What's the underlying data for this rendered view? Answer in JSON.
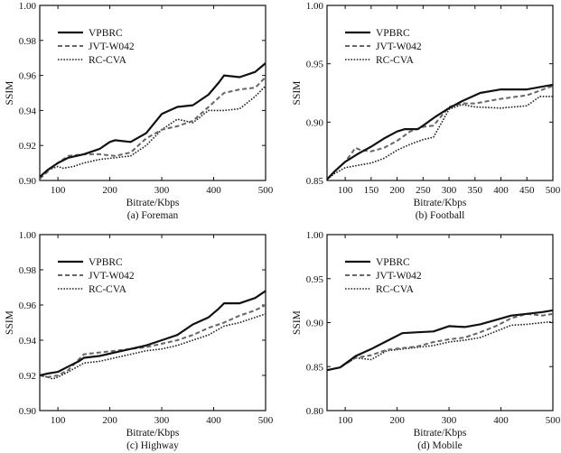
{
  "chart_data": [
    {
      "type": "line",
      "caption": "(a) Foreman",
      "xlabel": "Bitrate/Kbps",
      "ylabel": "SSIM",
      "xlim": [
        65,
        500
      ],
      "ylim": [
        0.9,
        1.0
      ],
      "xticks": [
        100,
        200,
        300,
        400,
        500
      ],
      "yticks": [
        0.9,
        0.92,
        0.94,
        0.96,
        0.98,
        1.0
      ],
      "ytick_labels": [
        "0.90",
        "0.92",
        "0.94",
        "0.96",
        "0.98",
        "1.00"
      ],
      "legend": "top-left",
      "series": [
        {
          "name": "VPBRC",
          "style": "solid",
          "x": [
            65,
            80,
            100,
            120,
            150,
            180,
            200,
            210,
            240,
            270,
            300,
            330,
            360,
            390,
            410,
            420,
            450,
            480,
            500
          ],
          "y": [
            0.902,
            0.906,
            0.91,
            0.913,
            0.915,
            0.918,
            0.922,
            0.923,
            0.922,
            0.927,
            0.938,
            0.942,
            0.943,
            0.949,
            0.956,
            0.96,
            0.959,
            0.962,
            0.967
          ]
        },
        {
          "name": "JVT-W042",
          "style": "dashed",
          "x": [
            65,
            80,
            100,
            120,
            150,
            180,
            210,
            240,
            270,
            300,
            330,
            360,
            390,
            420,
            450,
            480,
            500
          ],
          "y": [
            0.901,
            0.905,
            0.91,
            0.914,
            0.915,
            0.915,
            0.914,
            0.916,
            0.924,
            0.929,
            0.931,
            0.934,
            0.942,
            0.95,
            0.952,
            0.953,
            0.959
          ]
        },
        {
          "name": "RC-CVA",
          "style": "dotted",
          "x": [
            65,
            80,
            100,
            110,
            130,
            150,
            180,
            210,
            240,
            270,
            300,
            330,
            360,
            390,
            420,
            450,
            480,
            500
          ],
          "y": [
            0.902,
            0.906,
            0.908,
            0.907,
            0.908,
            0.91,
            0.912,
            0.913,
            0.914,
            0.92,
            0.929,
            0.935,
            0.933,
            0.94,
            0.94,
            0.941,
            0.948,
            0.954
          ]
        }
      ]
    },
    {
      "type": "line",
      "caption": "(b) Football",
      "xlabel": "Bitrate/Kbps",
      "ylabel": "SSIM",
      "xlim": [
        65,
        500
      ],
      "ylim": [
        0.85,
        1.0
      ],
      "xticks": [
        100,
        150,
        200,
        250,
        300,
        350,
        400,
        450,
        500
      ],
      "yticks": [
        0.85,
        0.9,
        0.95,
        1.0
      ],
      "ytick_labels": [
        "0.85",
        "0.90",
        "0.95",
        "1.00"
      ],
      "legend": "top-left",
      "series": [
        {
          "name": "VPBRC",
          "style": "solid",
          "x": [
            65,
            80,
            100,
            125,
            150,
            175,
            200,
            215,
            240,
            250,
            275,
            300,
            325,
            360,
            400,
            450,
            500
          ],
          "y": [
            0.851,
            0.858,
            0.866,
            0.873,
            0.879,
            0.886,
            0.892,
            0.894,
            0.894,
            0.897,
            0.905,
            0.912,
            0.918,
            0.925,
            0.928,
            0.928,
            0.932
          ]
        },
        {
          "name": "JVT-W042",
          "style": "dashed",
          "x": [
            65,
            80,
            100,
            120,
            130,
            150,
            175,
            200,
            225,
            250,
            270,
            300,
            325,
            350,
            400,
            450,
            500
          ],
          "y": [
            0.851,
            0.858,
            0.866,
            0.878,
            0.876,
            0.875,
            0.878,
            0.884,
            0.892,
            0.896,
            0.897,
            0.913,
            0.916,
            0.916,
            0.92,
            0.923,
            0.931
          ]
        },
        {
          "name": "RC-CVA",
          "style": "dotted",
          "x": [
            65,
            80,
            100,
            125,
            150,
            175,
            200,
            225,
            250,
            270,
            300,
            325,
            350,
            400,
            450,
            475,
            500
          ],
          "y": [
            0.851,
            0.856,
            0.861,
            0.863,
            0.865,
            0.869,
            0.876,
            0.881,
            0.885,
            0.887,
            0.911,
            0.915,
            0.913,
            0.912,
            0.914,
            0.922,
            0.922
          ]
        }
      ]
    },
    {
      "type": "line",
      "caption": "(c) Highway",
      "xlabel": "Bitrate/Kbps",
      "ylabel": "SSIM",
      "xlim": [
        65,
        500
      ],
      "ylim": [
        0.9,
        1.0
      ],
      "xticks": [
        100,
        200,
        300,
        400,
        500
      ],
      "yticks": [
        0.9,
        0.92,
        0.94,
        0.96,
        0.98,
        1.0
      ],
      "ytick_labels": [
        "0.90",
        "0.92",
        "0.94",
        "0.96",
        "0.98",
        "1.00"
      ],
      "legend": "top-left",
      "series": [
        {
          "name": "VPBRC",
          "style": "solid",
          "x": [
            65,
            80,
            100,
            120,
            140,
            150,
            180,
            210,
            240,
            270,
            300,
            330,
            360,
            390,
            410,
            420,
            450,
            480,
            500
          ],
          "y": [
            0.92,
            0.921,
            0.922,
            0.925,
            0.928,
            0.93,
            0.931,
            0.933,
            0.935,
            0.937,
            0.94,
            0.943,
            0.949,
            0.953,
            0.958,
            0.961,
            0.961,
            0.964,
            0.968
          ]
        },
        {
          "name": "JVT-W042",
          "style": "dashed",
          "x": [
            65,
            80,
            100,
            120,
            140,
            150,
            180,
            210,
            240,
            270,
            300,
            330,
            360,
            390,
            420,
            450,
            480,
            500
          ],
          "y": [
            0.92,
            0.919,
            0.92,
            0.923,
            0.929,
            0.932,
            0.933,
            0.934,
            0.935,
            0.936,
            0.938,
            0.94,
            0.943,
            0.947,
            0.95,
            0.954,
            0.957,
            0.96
          ]
        },
        {
          "name": "RC-CVA",
          "style": "dotted",
          "x": [
            65,
            80,
            90,
            100,
            120,
            150,
            180,
            210,
            240,
            270,
            300,
            330,
            360,
            390,
            420,
            450,
            480,
            500
          ],
          "y": [
            0.92,
            0.919,
            0.918,
            0.919,
            0.922,
            0.927,
            0.928,
            0.93,
            0.932,
            0.934,
            0.935,
            0.937,
            0.94,
            0.943,
            0.948,
            0.95,
            0.953,
            0.955
          ]
        }
      ]
    },
    {
      "type": "line",
      "caption": "(d) Mobile",
      "xlabel": "Bitrate/Kbps",
      "ylabel": "SSIM",
      "xlim": [
        65,
        500
      ],
      "ylim": [
        0.8,
        1.0
      ],
      "xticks": [
        100,
        200,
        300,
        400,
        500
      ],
      "yticks": [
        0.8,
        0.85,
        0.9,
        0.95,
        1.0
      ],
      "ytick_labels": [
        "0.80",
        "0.85",
        "0.90",
        "0.95",
        "1.00"
      ],
      "legend": "top-left",
      "series": [
        {
          "name": "VPBRC",
          "style": "solid",
          "x": [
            65,
            90,
            120,
            150,
            180,
            210,
            240,
            270,
            300,
            330,
            360,
            390,
            420,
            450,
            480,
            500
          ],
          "y": [
            0.846,
            0.849,
            0.862,
            0.87,
            0.879,
            0.888,
            0.889,
            0.89,
            0.896,
            0.895,
            0.898,
            0.903,
            0.908,
            0.91,
            0.912,
            0.914
          ]
        },
        {
          "name": "JVT-W042",
          "style": "dashed",
          "x": [
            65,
            90,
            120,
            150,
            180,
            210,
            240,
            270,
            300,
            330,
            360,
            390,
            420,
            450,
            480,
            500
          ],
          "y": [
            0.846,
            0.849,
            0.86,
            0.863,
            0.869,
            0.871,
            0.873,
            0.878,
            0.881,
            0.883,
            0.889,
            0.896,
            0.905,
            0.91,
            0.908,
            0.91
          ]
        },
        {
          "name": "RC-CVA",
          "style": "dotted",
          "x": [
            65,
            90,
            120,
            150,
            180,
            210,
            240,
            270,
            300,
            330,
            360,
            390,
            420,
            450,
            480,
            500
          ],
          "y": [
            0.846,
            0.849,
            0.86,
            0.858,
            0.868,
            0.87,
            0.872,
            0.874,
            0.878,
            0.88,
            0.883,
            0.89,
            0.897,
            0.898,
            0.9,
            0.901
          ]
        }
      ]
    }
  ],
  "legend_entries": [
    "VPBRC",
    "JVT-W042",
    "RC-CVA"
  ]
}
